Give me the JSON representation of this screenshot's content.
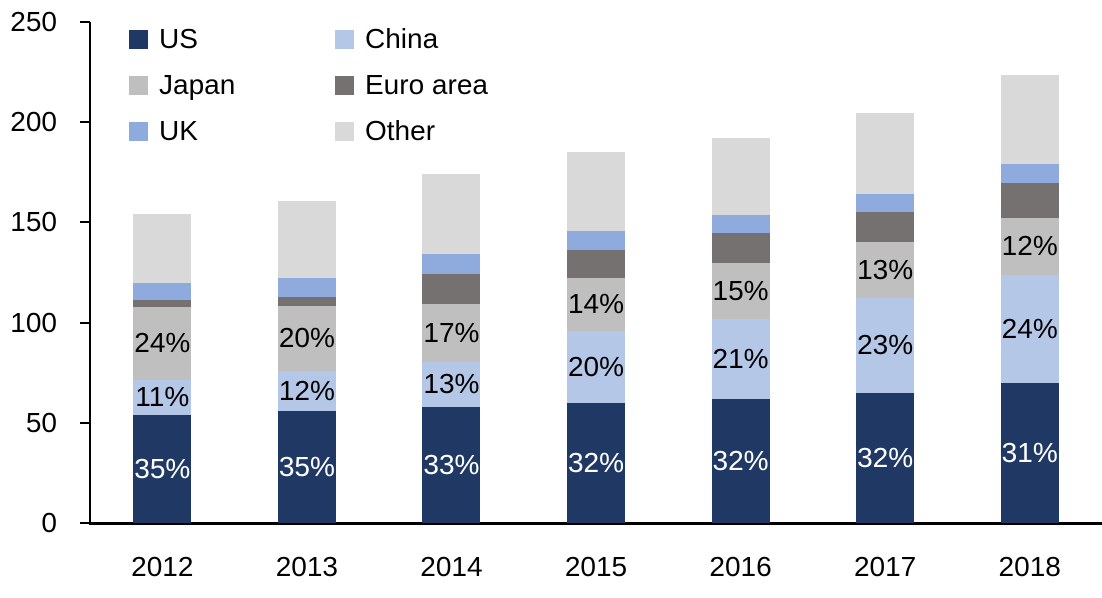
{
  "chart_data": {
    "type": "bar",
    "stacked": true,
    "title": "",
    "xlabel": "",
    "ylabel": "",
    "categories": [
      "2012",
      "2013",
      "2014",
      "2015",
      "2016",
      "2017",
      "2018"
    ],
    "series": [
      {
        "name": "US",
        "color": "#1F3864",
        "label_color": "#FFFFFF",
        "values": [
          54,
          56,
          58,
          60,
          62,
          65,
          70
        ],
        "labels": [
          "35%",
          "35%",
          "33%",
          "32%",
          "32%",
          "32%",
          "31%"
        ]
      },
      {
        "name": "China",
        "color": "#B4C7E7",
        "label_color": "#000000",
        "values": [
          17.5,
          20,
          22.5,
          36,
          40,
          47.5,
          54
        ],
        "labels": [
          "11%",
          "12%",
          "13%",
          "20%",
          "21%",
          "23%",
          "24%"
        ]
      },
      {
        "name": "Japan",
        "color": "#BFBFBF",
        "label_color": "#000000",
        "values": [
          36.5,
          32.5,
          29,
          26.5,
          28,
          27.5,
          28
        ],
        "labels": [
          "24%",
          "20%",
          "17%",
          "14%",
          "15%",
          "13%",
          "12%"
        ]
      },
      {
        "name": "Euro area",
        "color": "#767171",
        "label_color": "#000000",
        "values": [
          3.5,
          4.5,
          15,
          13.5,
          14.5,
          15,
          17.5
        ],
        "labels": [
          "",
          "",
          "",
          "",
          "",
          "",
          ""
        ]
      },
      {
        "name": "UK",
        "color": "#8FAADC",
        "label_color": "#000000",
        "values": [
          8.5,
          9.5,
          10,
          9.5,
          9,
          9,
          9.5
        ],
        "labels": [
          "",
          "",
          "",
          "",
          "",
          "",
          ""
        ]
      },
      {
        "name": "Other",
        "color": "#D9D9D9",
        "label_color": "#000000",
        "values": [
          34,
          38,
          39.5,
          39.5,
          38.5,
          40.5,
          44.5
        ],
        "labels": [
          "",
          "",
          "",
          "",
          "",
          "",
          ""
        ]
      }
    ],
    "totals": [
      154,
      160.5,
      174,
      185,
      192,
      204.5,
      223.5
    ],
    "y_axis": {
      "min": 0,
      "max": 250,
      "ticks": [
        "0",
        "50",
        "100",
        "150",
        "200",
        "250"
      ],
      "tick_step": 50
    },
    "legend": {
      "position": "top-left",
      "columns": 2,
      "order": [
        "US",
        "China",
        "Japan",
        "Euro area",
        "UK",
        "Other"
      ]
    },
    "grid": false,
    "axis_color": "#000000",
    "background": "#FFFFFF"
  }
}
